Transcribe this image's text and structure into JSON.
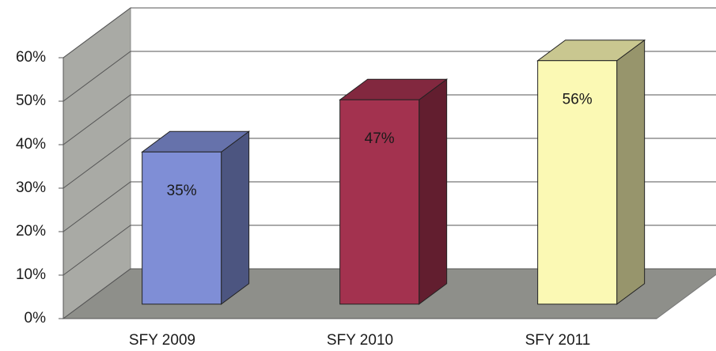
{
  "chart_data": {
    "type": "bar3d",
    "categories": [
      "SFY 2009",
      "SFY 2010",
      "SFY 2011"
    ],
    "values": [
      35,
      47,
      56
    ],
    "value_labels": [
      "35%",
      "47%",
      "56%"
    ],
    "colors": [
      "#7f8ed6",
      "#a3324f",
      "#fbf9b4"
    ],
    "ylim": [
      0,
      60
    ],
    "yticks": [
      {
        "value": 0,
        "label": "0%"
      },
      {
        "value": 10,
        "label": "10%"
      },
      {
        "value": 20,
        "label": "20%"
      },
      {
        "value": 30,
        "label": "30%"
      },
      {
        "value": 40,
        "label": "40%"
      },
      {
        "value": 50,
        "label": "50%"
      },
      {
        "value": 60,
        "label": "60%"
      }
    ],
    "grid": true
  }
}
